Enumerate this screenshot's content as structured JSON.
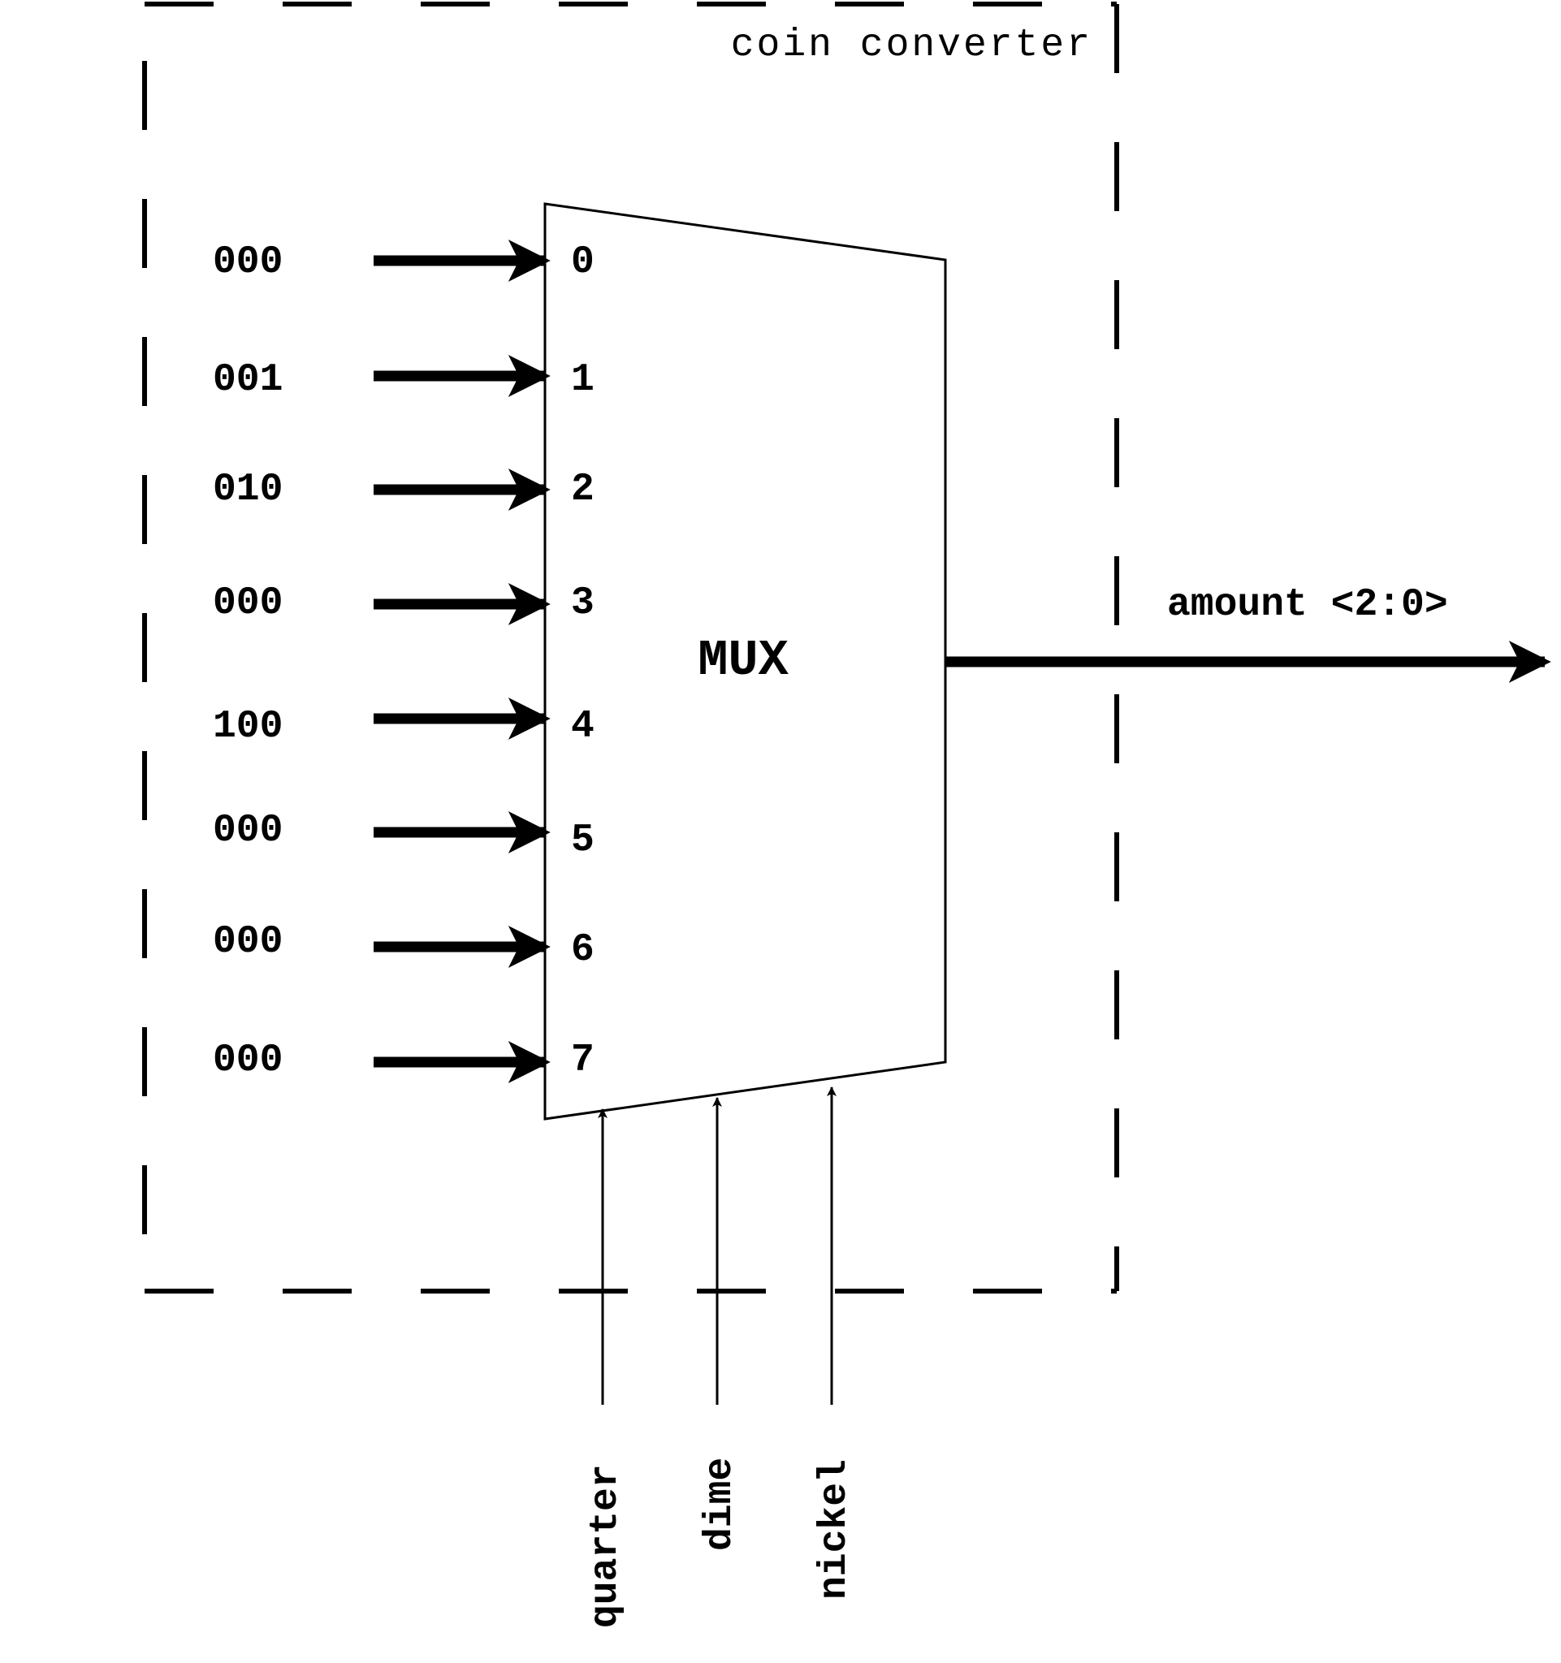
{
  "title": "coin converter",
  "mux": {
    "label": "MUX",
    "ports": [
      "0",
      "1",
      "2",
      "3",
      "4",
      "5",
      "6",
      "7"
    ]
  },
  "inputs": [
    "000",
    "001",
    "010",
    "000",
    "100",
    "000",
    "000",
    "000"
  ],
  "selects": [
    "quarter",
    "dime",
    "nickel"
  ],
  "output": {
    "label": "amount <2:0>"
  },
  "colors": {
    "ink": "#000000",
    "background": "#ffffff"
  }
}
